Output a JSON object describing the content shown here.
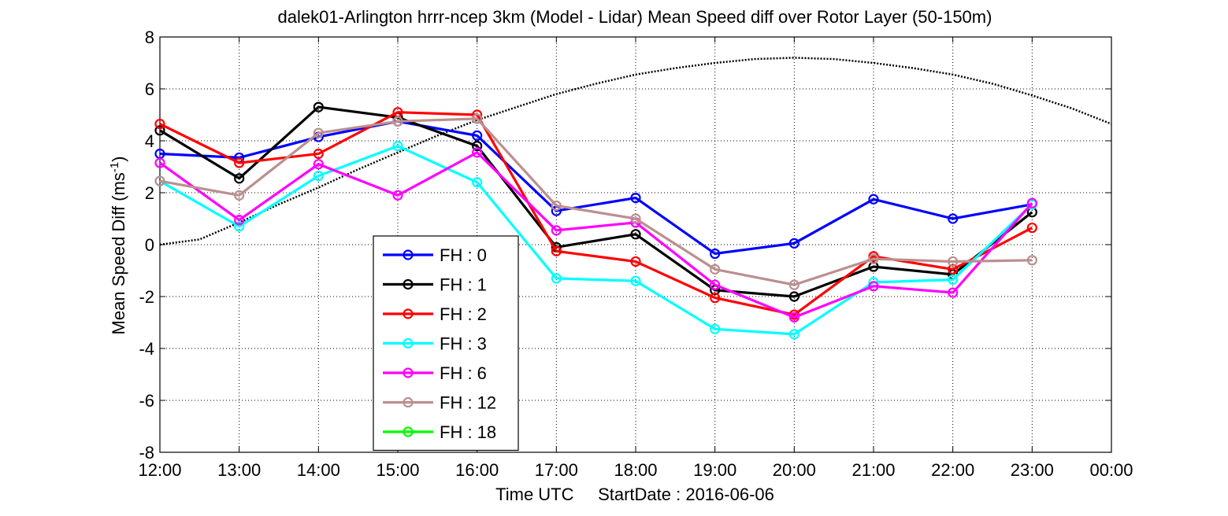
{
  "chart_data": {
    "type": "line",
    "title": "dalek01-Arlington hrrr-ncep 3km (Model - Lidar) Mean Speed diff over Rotor Layer (50-150m)",
    "xlabel": "Time UTC     StartDate : 2016-06-06",
    "ylabel_main": "Mean Speed Diff (ms",
    "ylabel_sup": "-1",
    "ylabel_close": ")",
    "x_ticks": [
      "12:00",
      "13:00",
      "14:00",
      "15:00",
      "16:00",
      "17:00",
      "18:00",
      "19:00",
      "20:00",
      "21:00",
      "22:00",
      "23:00",
      "00:00"
    ],
    "x_range": [
      12,
      24
    ],
    "ylim": [
      -8,
      8
    ],
    "y_ticks": [
      "-8",
      "-6",
      "-4",
      "-2",
      "0",
      "2",
      "4",
      "6",
      "8"
    ],
    "grid": true,
    "legend_position": "lower-left",
    "series": [
      {
        "name": "FH : 0",
        "color": "#0000ff",
        "x": [
          12,
          13,
          14,
          15,
          16,
          17,
          18,
          19,
          20,
          21,
          22,
          23
        ],
        "values": [
          3.5,
          3.35,
          4.15,
          4.75,
          4.2,
          1.3,
          1.8,
          -0.35,
          0.05,
          1.75,
          1.0,
          1.55
        ]
      },
      {
        "name": "FH : 1",
        "color": "#000000",
        "x": [
          12,
          13,
          14,
          15,
          16,
          17,
          18,
          19,
          20,
          21,
          22,
          23
        ],
        "values": [
          4.4,
          2.55,
          5.3,
          4.9,
          3.8,
          -0.1,
          0.4,
          -1.75,
          -2.0,
          -0.85,
          -1.15,
          1.25
        ]
      },
      {
        "name": "FH : 2",
        "color": "#ff0000",
        "x": [
          12,
          13,
          14,
          15,
          16,
          17,
          18,
          19,
          20,
          21,
          22,
          23
        ],
        "values": [
          4.65,
          3.15,
          3.5,
          5.1,
          5.0,
          -0.25,
          -0.65,
          -2.05,
          -2.7,
          -0.45,
          -0.95,
          0.65
        ]
      },
      {
        "name": "FH : 3",
        "color": "#00ffff",
        "x": [
          12,
          13,
          14,
          15,
          16,
          17,
          18,
          19,
          20,
          21,
          22,
          23
        ],
        "values": [
          2.45,
          0.7,
          2.65,
          3.8,
          2.4,
          -1.3,
          -1.4,
          -3.25,
          -3.45,
          -1.45,
          -1.35,
          1.55
        ]
      },
      {
        "name": "FH : 6",
        "color": "#ff00ff",
        "x": [
          12,
          13,
          14,
          15,
          16,
          17,
          18,
          19,
          20,
          21,
          22,
          23
        ],
        "values": [
          3.15,
          0.95,
          3.1,
          1.9,
          3.55,
          0.55,
          0.85,
          -1.55,
          -2.8,
          -1.6,
          -1.85,
          1.6
        ]
      },
      {
        "name": "FH : 12",
        "color": "#bc8f8f",
        "x": [
          12,
          13,
          14,
          15,
          16,
          17,
          18,
          19,
          20,
          21,
          22,
          23
        ],
        "values": [
          2.45,
          1.9,
          4.3,
          4.75,
          4.85,
          1.5,
          1.0,
          -0.95,
          -1.55,
          -0.55,
          -0.65,
          -0.6
        ]
      },
      {
        "name": "FH : 18",
        "color": "#00ff00",
        "x": [],
        "values": []
      }
    ],
    "reference_curve": {
      "style": "dotted",
      "color": "#000000",
      "x": [
        12,
        12.5,
        13,
        13.5,
        14,
        14.5,
        15,
        15.5,
        16,
        16.5,
        17,
        17.5,
        18,
        18.5,
        19,
        19.5,
        20,
        20.5,
        21,
        21.5,
        22,
        22.5,
        23,
        23.5,
        24
      ],
      "values": [
        0,
        0.2,
        0.85,
        1.55,
        2.2,
        2.9,
        3.55,
        4.2,
        4.8,
        5.3,
        5.8,
        6.2,
        6.55,
        6.8,
        7.0,
        7.15,
        7.2,
        7.15,
        7.0,
        6.8,
        6.55,
        6.2,
        5.75,
        5.25,
        4.65
      ]
    }
  }
}
